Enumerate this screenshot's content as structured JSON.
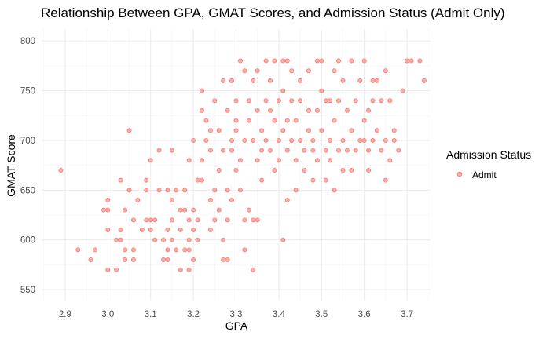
{
  "chart_data": {
    "type": "scatter",
    "title": "Relationship Between GPA, GMAT Scores, and Admission Status (Admit Only)",
    "xlabel": "GPA",
    "ylabel": "GMAT Score",
    "xlim": [
      2.845,
      3.755
    ],
    "ylim": [
      539,
      812
    ],
    "x_ticks": [
      "2.9",
      "3.0",
      "3.1",
      "3.2",
      "3.3",
      "3.4",
      "3.5",
      "3.6",
      "3.7"
    ],
    "y_ticks": [
      "550",
      "600",
      "650",
      "700",
      "750",
      "800"
    ],
    "grid": true,
    "legend": {
      "title": "Admission Status",
      "position": "right",
      "entries": [
        "Admit"
      ]
    },
    "point_color": "#F8766D",
    "series": [
      {
        "name": "Admit",
        "points": [
          [
            2.89,
            670
          ],
          [
            2.93,
            590
          ],
          [
            2.96,
            580
          ],
          [
            2.97,
            590
          ],
          [
            2.99,
            630
          ],
          [
            3.0,
            630
          ],
          [
            3.0,
            640
          ],
          [
            3.0,
            610
          ],
          [
            3.0,
            570
          ],
          [
            3.02,
            570
          ],
          [
            3.02,
            600
          ],
          [
            3.03,
            600
          ],
          [
            3.03,
            610
          ],
          [
            3.03,
            660
          ],
          [
            3.04,
            580
          ],
          [
            3.04,
            630
          ],
          [
            3.04,
            590
          ],
          [
            3.05,
            650
          ],
          [
            3.05,
            710
          ],
          [
            3.06,
            590
          ],
          [
            3.06,
            580
          ],
          [
            3.06,
            620
          ],
          [
            3.07,
            640
          ],
          [
            3.08,
            610
          ],
          [
            3.09,
            620
          ],
          [
            3.09,
            660
          ],
          [
            3.09,
            650
          ],
          [
            3.1,
            620
          ],
          [
            3.1,
            610
          ],
          [
            3.1,
            680
          ],
          [
            3.11,
            620
          ],
          [
            3.11,
            600
          ],
          [
            3.12,
            650
          ],
          [
            3.12,
            690
          ],
          [
            3.13,
            600
          ],
          [
            3.13,
            580
          ],
          [
            3.14,
            580
          ],
          [
            3.14,
            650
          ],
          [
            3.14,
            590
          ],
          [
            3.14,
            610
          ],
          [
            3.15,
            600
          ],
          [
            3.15,
            620
          ],
          [
            3.15,
            640
          ],
          [
            3.15,
            690
          ],
          [
            3.16,
            650
          ],
          [
            3.16,
            590
          ],
          [
            3.17,
            610
          ],
          [
            3.17,
            630
          ],
          [
            3.17,
            570
          ],
          [
            3.18,
            630
          ],
          [
            3.18,
            590
          ],
          [
            3.18,
            650
          ],
          [
            3.19,
            600
          ],
          [
            3.19,
            570
          ],
          [
            3.19,
            680
          ],
          [
            3.19,
            590
          ],
          [
            3.19,
            620
          ],
          [
            3.2,
            610
          ],
          [
            3.2,
            700
          ],
          [
            3.2,
            630
          ],
          [
            3.2,
            580
          ],
          [
            3.21,
            660
          ],
          [
            3.21,
            620
          ],
          [
            3.21,
            600
          ],
          [
            3.22,
            680
          ],
          [
            3.22,
            660
          ],
          [
            3.22,
            750
          ],
          [
            3.22,
            730
          ],
          [
            3.23,
            700
          ],
          [
            3.23,
            720
          ],
          [
            3.24,
            640
          ],
          [
            3.24,
            690
          ],
          [
            3.24,
            710
          ],
          [
            3.24,
            610
          ],
          [
            3.25,
            650
          ],
          [
            3.25,
            620
          ],
          [
            3.25,
            740
          ],
          [
            3.26,
            630
          ],
          [
            3.26,
            710
          ],
          [
            3.26,
            670
          ],
          [
            3.27,
            600
          ],
          [
            3.27,
            580
          ],
          [
            3.27,
            760
          ],
          [
            3.27,
            690
          ],
          [
            3.28,
            620
          ],
          [
            3.28,
            650
          ],
          [
            3.28,
            730
          ],
          [
            3.28,
            580
          ],
          [
            3.29,
            640
          ],
          [
            3.29,
            700
          ],
          [
            3.29,
            760
          ],
          [
            3.29,
            690
          ],
          [
            3.3,
            740
          ],
          [
            3.3,
            720
          ],
          [
            3.3,
            670
          ],
          [
            3.3,
            710
          ],
          [
            3.31,
            780
          ],
          [
            3.31,
            650
          ],
          [
            3.31,
            680
          ],
          [
            3.32,
            590
          ],
          [
            3.32,
            620
          ],
          [
            3.32,
            770
          ],
          [
            3.32,
            700
          ],
          [
            3.33,
            630
          ],
          [
            3.33,
            740
          ],
          [
            3.33,
            720
          ],
          [
            3.34,
            620
          ],
          [
            3.34,
            570
          ],
          [
            3.34,
            700
          ],
          [
            3.34,
            760
          ],
          [
            3.35,
            680
          ],
          [
            3.35,
            620
          ],
          [
            3.35,
            730
          ],
          [
            3.35,
            770
          ],
          [
            3.36,
            660
          ],
          [
            3.36,
            710
          ],
          [
            3.36,
            690
          ],
          [
            3.37,
            780
          ],
          [
            3.37,
            740
          ],
          [
            3.37,
            700
          ],
          [
            3.38,
            730
          ],
          [
            3.38,
            690
          ],
          [
            3.38,
            760
          ],
          [
            3.39,
            780
          ],
          [
            3.39,
            720
          ],
          [
            3.39,
            670
          ],
          [
            3.4,
            700
          ],
          [
            3.4,
            680
          ],
          [
            3.4,
            740
          ],
          [
            3.41,
            780
          ],
          [
            3.41,
            600
          ],
          [
            3.41,
            710
          ],
          [
            3.41,
            750
          ],
          [
            3.42,
            640
          ],
          [
            3.42,
            690
          ],
          [
            3.42,
            720
          ],
          [
            3.42,
            780
          ],
          [
            3.43,
            770
          ],
          [
            3.43,
            700
          ],
          [
            3.43,
            740
          ],
          [
            3.44,
            650
          ],
          [
            3.44,
            680
          ],
          [
            3.44,
            720
          ],
          [
            3.45,
            700
          ],
          [
            3.45,
            760
          ],
          [
            3.45,
            740
          ],
          [
            3.46,
            690
          ],
          [
            3.46,
            670
          ],
          [
            3.47,
            730
          ],
          [
            3.47,
            770
          ],
          [
            3.47,
            710
          ],
          [
            3.48,
            700
          ],
          [
            3.48,
            660
          ],
          [
            3.48,
            690
          ],
          [
            3.49,
            780
          ],
          [
            3.49,
            730
          ],
          [
            3.49,
            680
          ],
          [
            3.5,
            710
          ],
          [
            3.5,
            750
          ],
          [
            3.5,
            780
          ],
          [
            3.51,
            740
          ],
          [
            3.51,
            690
          ],
          [
            3.51,
            660
          ],
          [
            3.52,
            700
          ],
          [
            3.52,
            680
          ],
          [
            3.52,
            740
          ],
          [
            3.53,
            770
          ],
          [
            3.53,
            650
          ],
          [
            3.53,
            720
          ],
          [
            3.54,
            780
          ],
          [
            3.54,
            690
          ],
          [
            3.54,
            740
          ],
          [
            3.55,
            700
          ],
          [
            3.55,
            670
          ],
          [
            3.55,
            760
          ],
          [
            3.56,
            730
          ],
          [
            3.56,
            690
          ],
          [
            3.57,
            780
          ],
          [
            3.57,
            670
          ],
          [
            3.57,
            710
          ],
          [
            3.58,
            740
          ],
          [
            3.58,
            690
          ],
          [
            3.59,
            700
          ],
          [
            3.59,
            760
          ],
          [
            3.6,
            780
          ],
          [
            3.6,
            700
          ],
          [
            3.6,
            720
          ],
          [
            3.61,
            670
          ],
          [
            3.61,
            730
          ],
          [
            3.61,
            690
          ],
          [
            3.62,
            700
          ],
          [
            3.62,
            760
          ],
          [
            3.62,
            740
          ],
          [
            3.63,
            710
          ],
          [
            3.63,
            760
          ],
          [
            3.64,
            690
          ],
          [
            3.64,
            740
          ],
          [
            3.65,
            660
          ],
          [
            3.65,
            700
          ],
          [
            3.65,
            770
          ],
          [
            3.66,
            680
          ],
          [
            3.66,
            740
          ],
          [
            3.67,
            710
          ],
          [
            3.67,
            700
          ],
          [
            3.68,
            690
          ],
          [
            3.69,
            750
          ],
          [
            3.7,
            780
          ],
          [
            3.71,
            780
          ],
          [
            3.73,
            780
          ],
          [
            3.74,
            760
          ]
        ]
      }
    ]
  }
}
